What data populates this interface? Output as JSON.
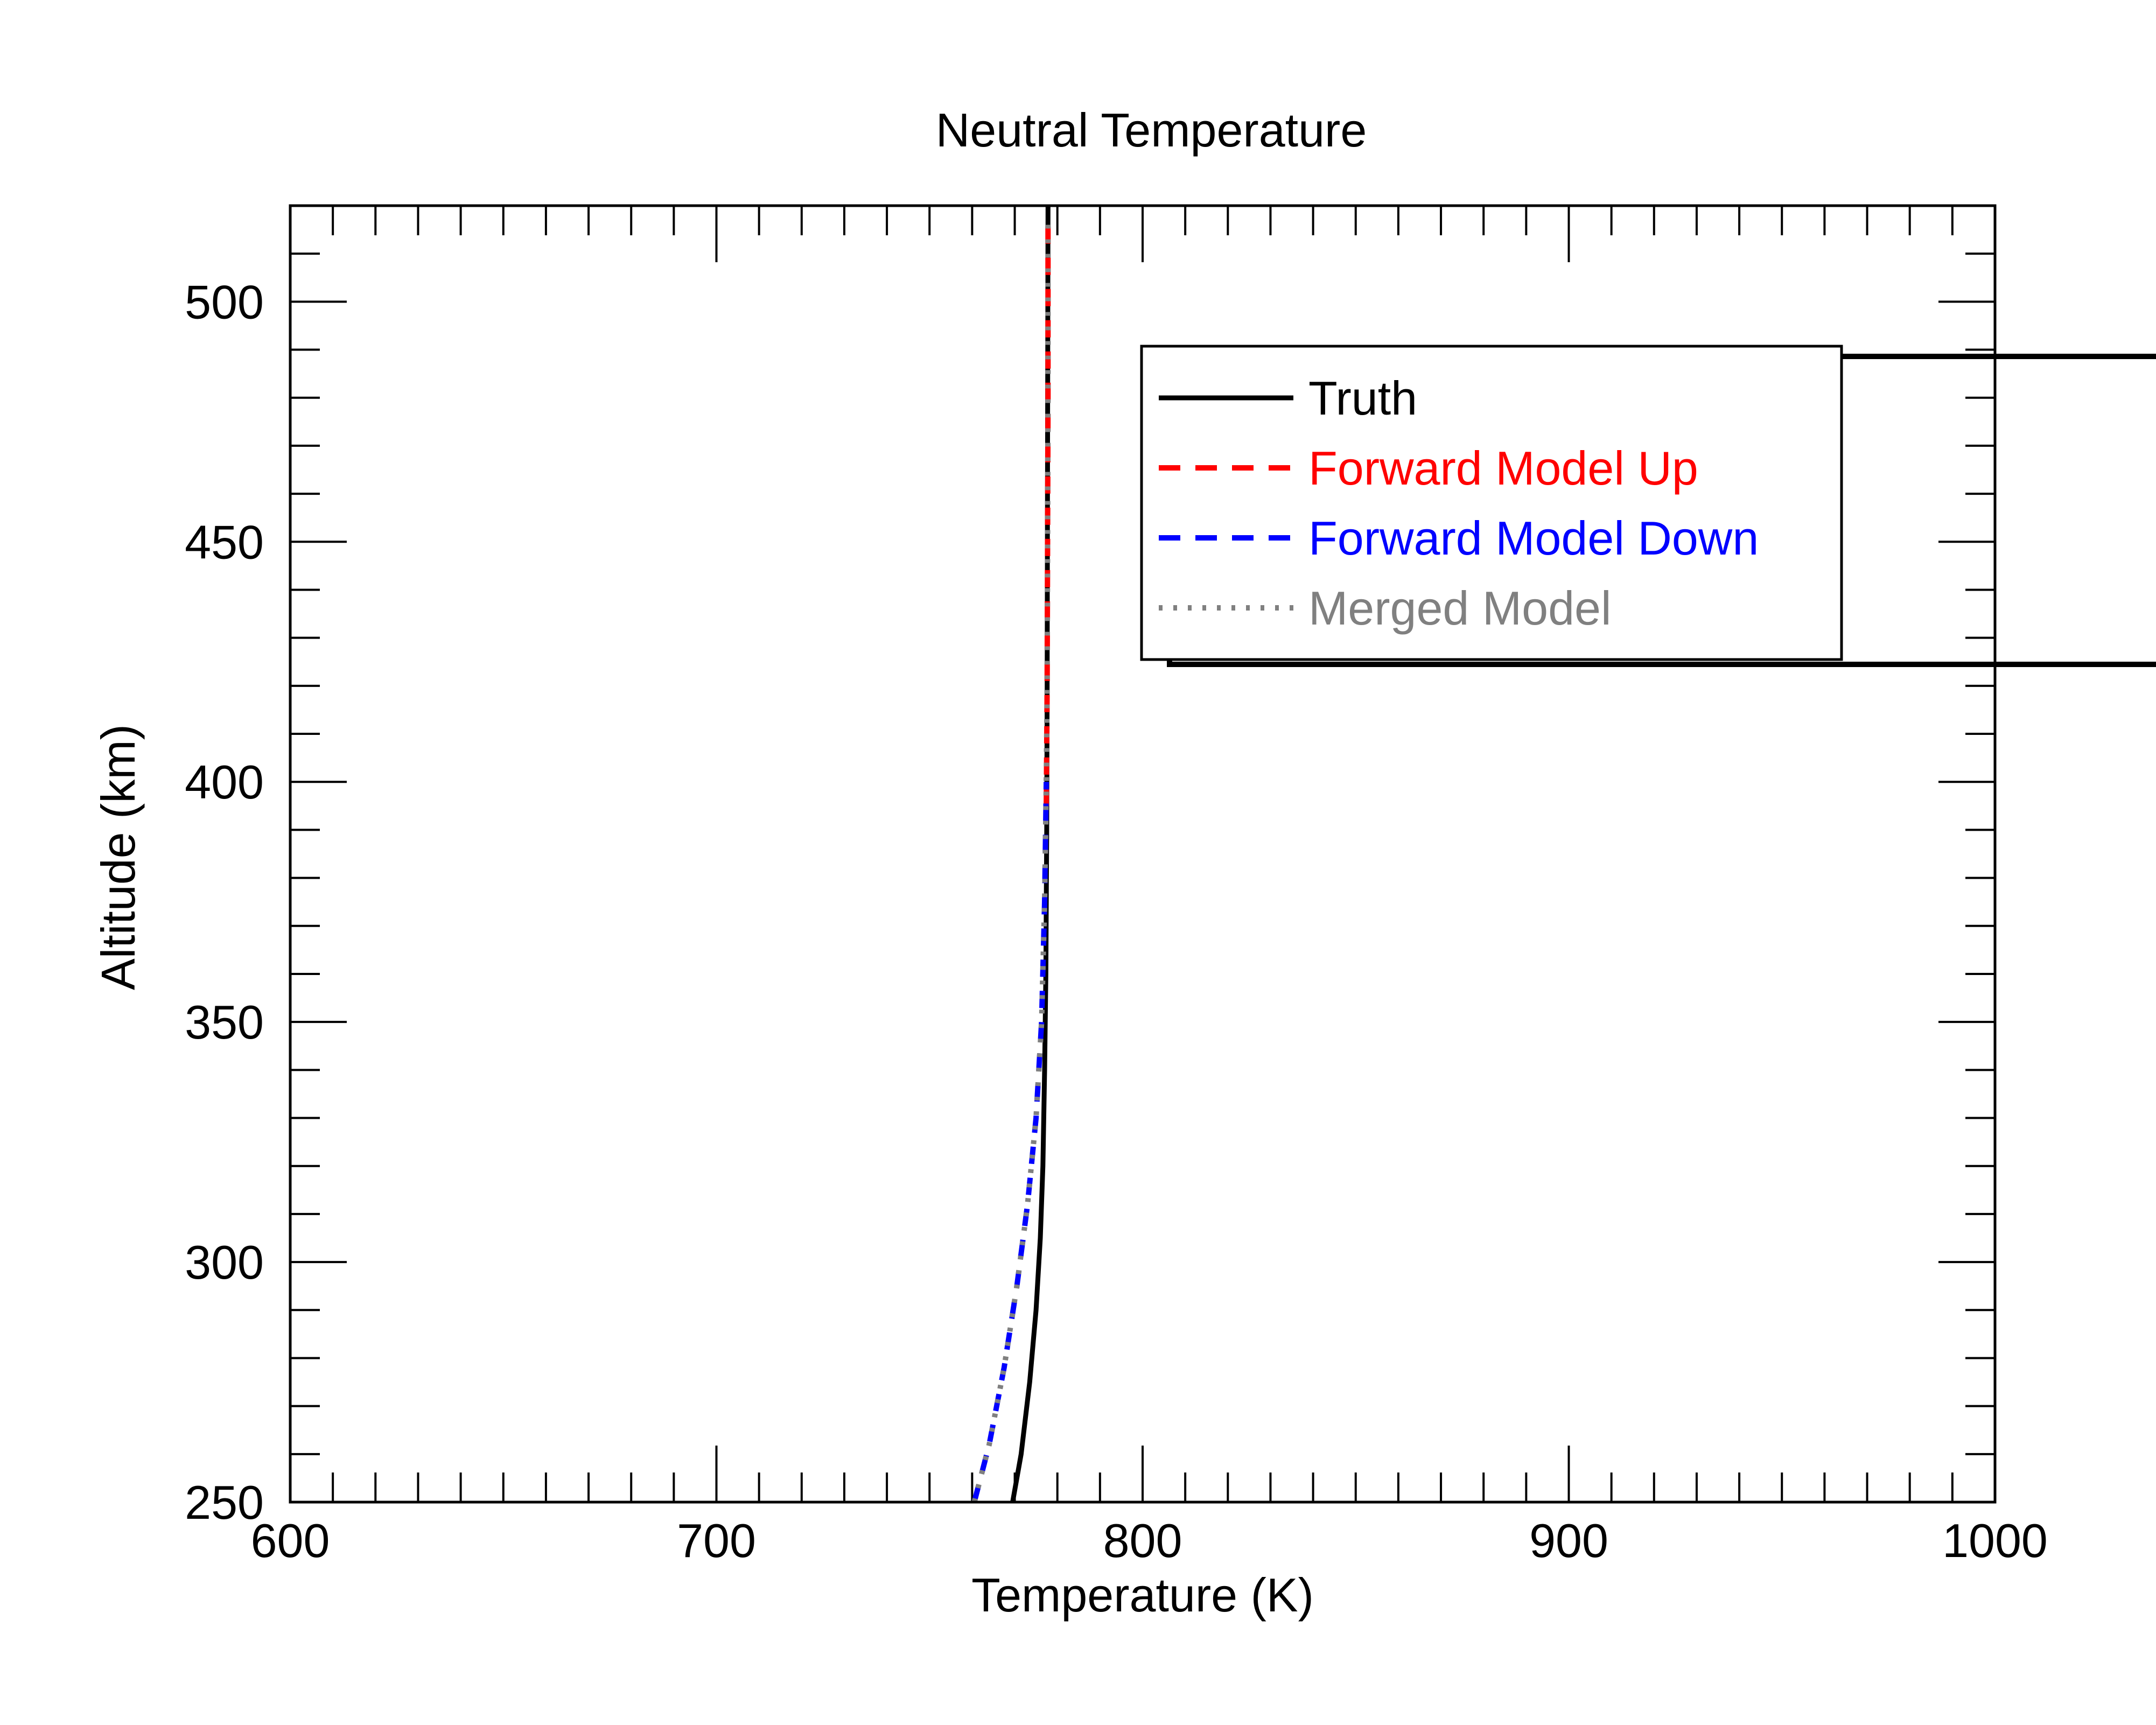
{
  "chart_data": {
    "type": "line",
    "title": "Neutral Temperature",
    "xlabel": "Temperature (K)",
    "ylabel": "Altitude (km)",
    "xlim": [
      600,
      1000
    ],
    "ylim": [
      250,
      520
    ],
    "xticks": [
      600,
      700,
      800,
      900,
      1000
    ],
    "xtick_labels": [
      "600",
      "700",
      "800",
      "900",
      "1000"
    ],
    "yticks": [
      250,
      300,
      350,
      400,
      450,
      500
    ],
    "ytick_labels": [
      "250",
      "300",
      "350",
      "400",
      "450",
      "500"
    ],
    "x_minor_step": 10,
    "y_minor_step": 10,
    "grid": false,
    "legend_position": "top-right",
    "series": [
      {
        "name": "Truth",
        "color": "#000000",
        "style": "solid",
        "x": [
          769.5,
          771.5,
          773.5,
          775.0,
          776.0,
          776.6,
          777.0,
          777.3,
          777.5,
          777.6,
          777.7,
          777.8
        ],
        "y": [
          250,
          260,
          275,
          290,
          305,
          320,
          340,
          360,
          390,
          420,
          470,
          520
        ]
      },
      {
        "name": "Forward Model Up",
        "color": "#ff0000",
        "style": "dashed",
        "x": [
          777.4,
          777.6,
          777.7,
          777.8,
          777.8
        ],
        "y": [
          395,
          420,
          450,
          480,
          518
        ]
      },
      {
        "name": "Forward Model Down",
        "color": "#0000ff",
        "style": "dashed",
        "x": [
          760.5,
          764.0,
          767.5,
          770.5,
          773.0,
          775.0,
          776.3,
          777.0,
          777.4
        ],
        "y": [
          250,
          262,
          278,
          295,
          312,
          330,
          350,
          375,
          400
        ]
      },
      {
        "name": "Merged Model",
        "color": "#808080",
        "style": "dotted",
        "x": [
          760.5,
          764.0,
          767.5,
          770.5,
          773.0,
          775.0,
          776.3,
          777.0,
          777.4,
          777.6,
          777.7,
          777.8,
          777.8
        ],
        "y": [
          250,
          262,
          278,
          295,
          312,
          330,
          350,
          375,
          400,
          420,
          450,
          480,
          518
        ]
      }
    ]
  }
}
